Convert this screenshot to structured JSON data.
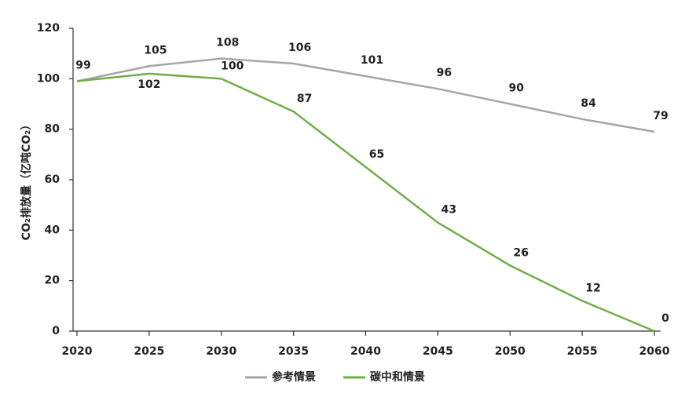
{
  "chart_data": {
    "type": "line",
    "y_label": "CO₂排放量（亿吨CO₂）",
    "x": [
      2020,
      2025,
      2030,
      2035,
      2040,
      2045,
      2050,
      2055,
      2060
    ],
    "xlim": [
      2020,
      2060
    ],
    "xticks": [
      2020,
      2025,
      2030,
      2035,
      2040,
      2045,
      2050,
      2055,
      2060
    ],
    "ylim": [
      0,
      120
    ],
    "yticks": [
      0,
      20,
      40,
      60,
      80,
      100,
      120
    ],
    "grid": false,
    "legend": "bottom",
    "series": [
      {
        "name": "参考情景",
        "color": "#a6a6a6",
        "values": [
          99,
          105,
          108,
          106,
          101,
          96,
          90,
          84,
          79
        ]
      },
      {
        "name": "碳中和情景",
        "color": "#70ad47",
        "values": [
          99,
          102,
          100,
          87,
          65,
          43,
          26,
          12,
          0
        ],
        "value_labels": [
          null,
          "102",
          "100",
          "87",
          "65",
          "43",
          "26",
          "12",
          "0"
        ]
      }
    ]
  }
}
